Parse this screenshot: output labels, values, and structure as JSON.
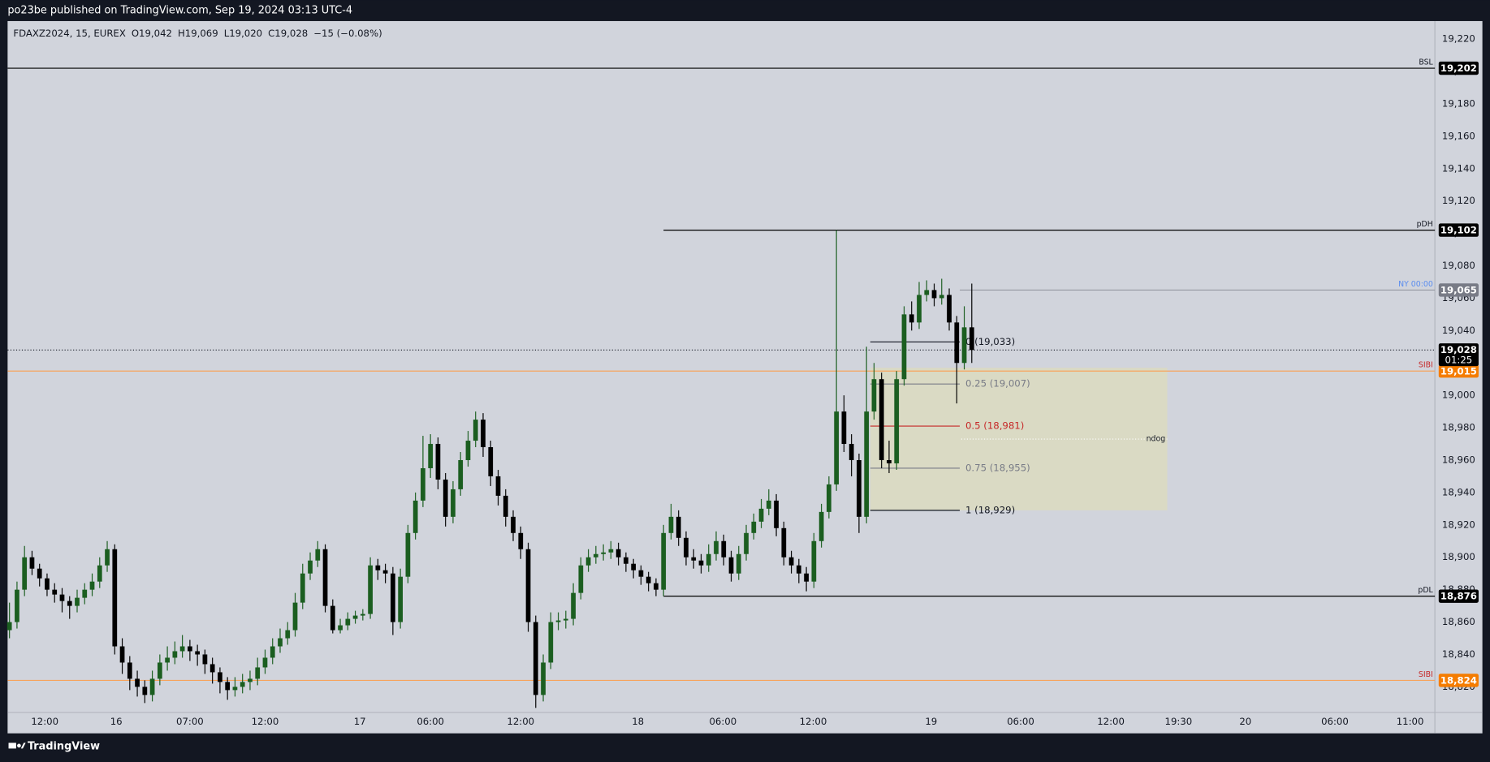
{
  "header": {
    "published": "po23be published on TradingView.com, Sep 19, 2024 03:13 UTC-4"
  },
  "footer": {
    "brand": "TradingView"
  },
  "chart_data": {
    "type": "candlestick",
    "legend": {
      "symbol": "FDAXZ2024, 15, EUREX",
      "open": "O19,042",
      "high": "H19,069",
      "low": "L19,020",
      "close": "C19,028",
      "change": "−15 (−0.08%)"
    },
    "up_color": "#1b5e20",
    "down_color": "#000000",
    "xlim": [
      -0.25,
      189.6
    ],
    "ylim": [
      18804.2,
      19231.1
    ],
    "xticks": [
      {
        "value": 4.7,
        "label": "12:00"
      },
      {
        "value": 14.2,
        "label": "16"
      },
      {
        "value": 24,
        "label": "07:00"
      },
      {
        "value": 34,
        "label": "12:00"
      },
      {
        "value": 46.6,
        "label": "17"
      },
      {
        "value": 56,
        "label": "06:00"
      },
      {
        "value": 68,
        "label": "12:00"
      },
      {
        "value": 83.6,
        "label": "18"
      },
      {
        "value": 94.9,
        "label": "06:00"
      },
      {
        "value": 106.9,
        "label": "12:00"
      },
      {
        "value": 122.6,
        "label": "19"
      },
      {
        "value": 134.5,
        "label": "06:00"
      },
      {
        "value": 146.5,
        "label": "12:00"
      },
      {
        "value": 155.5,
        "label": "19:30"
      },
      {
        "value": 164.4,
        "label": "20"
      },
      {
        "value": 176.3,
        "label": "06:00"
      },
      {
        "value": 186.3,
        "label": "11:00"
      }
    ],
    "yticks": [
      {
        "value": 18820,
        "label": "18,820"
      },
      {
        "value": 18840,
        "label": "18,840"
      },
      {
        "value": 18860,
        "label": "18,860"
      },
      {
        "value": 18880,
        "label": "18,880"
      },
      {
        "value": 18900,
        "label": "18,900"
      },
      {
        "value": 18920,
        "label": "18,920"
      },
      {
        "value": 18940,
        "label": "18,940"
      },
      {
        "value": 18960,
        "label": "18,960"
      },
      {
        "value": 18980,
        "label": "18,980"
      },
      {
        "value": 19000,
        "label": "19,000"
      },
      {
        "value": 19020,
        "label": "19,020"
      },
      {
        "value": 19040,
        "label": "19,040"
      },
      {
        "value": 19060,
        "label": "19,060"
      },
      {
        "value": 19080,
        "label": "19,080"
      },
      {
        "value": 19100,
        "label": "19,100"
      },
      {
        "value": 19120,
        "label": "19,120"
      },
      {
        "value": 19140,
        "label": "19,140"
      },
      {
        "value": 19160,
        "label": "19,160"
      },
      {
        "value": 19180,
        "label": "19,180"
      },
      {
        "value": 19200,
        "label": "19,200"
      },
      {
        "value": 19220,
        "label": "19,220"
      }
    ],
    "candles": [
      [
        18855,
        18872,
        18850,
        18860
      ],
      [
        18860,
        18885,
        18856,
        18880
      ],
      [
        18880,
        18907,
        18876,
        18900
      ],
      [
        18900,
        18904,
        18889,
        18893
      ],
      [
        18893,
        18896,
        18882,
        18887
      ],
      [
        18887,
        18890,
        18876,
        18880
      ],
      [
        18880,
        18884,
        18872,
        18877
      ],
      [
        18877,
        18881,
        18866,
        18873
      ],
      [
        18873,
        18876,
        18862,
        18870
      ],
      [
        18870,
        18880,
        18866,
        18875
      ],
      [
        18875,
        18884,
        18871,
        18880
      ],
      [
        18880,
        18890,
        18876,
        18885
      ],
      [
        18885,
        18900,
        18881,
        18895
      ],
      [
        18895,
        18910,
        18891,
        18905
      ],
      [
        18905,
        18908,
        18840,
        18845
      ],
      [
        18845,
        18850,
        18828,
        18835
      ],
      [
        18835,
        18839,
        18818,
        18825
      ],
      [
        18825,
        18830,
        18814,
        18820
      ],
      [
        18820,
        18824,
        18810,
        18815
      ],
      [
        18815,
        18830,
        18811,
        18825
      ],
      [
        18825,
        18840,
        18821,
        18835
      ],
      [
        18835,
        18845,
        18830,
        18838
      ],
      [
        18838,
        18848,
        18834,
        18842
      ],
      [
        18842,
        18852,
        18838,
        18845
      ],
      [
        18845,
        18849,
        18836,
        18842
      ],
      [
        18842,
        18846,
        18833,
        18840
      ],
      [
        18840,
        18843,
        18828,
        18834
      ],
      [
        18834,
        18838,
        18822,
        18829
      ],
      [
        18829,
        18832,
        18816,
        18823
      ],
      [
        18823,
        18826,
        18812,
        18818
      ],
      [
        18818,
        18826,
        18814,
        18820
      ],
      [
        18820,
        18828,
        18816,
        18823
      ],
      [
        18823,
        18830,
        18818,
        18825
      ],
      [
        18825,
        18838,
        18821,
        18832
      ],
      [
        18832,
        18843,
        18828,
        18838
      ],
      [
        18838,
        18850,
        18834,
        18845
      ],
      [
        18845,
        18856,
        18841,
        18850
      ],
      [
        18850,
        18860,
        18846,
        18855
      ],
      [
        18855,
        18878,
        18851,
        18872
      ],
      [
        18872,
        18896,
        18868,
        18890
      ],
      [
        18890,
        18903,
        18886,
        18898
      ],
      [
        18898,
        18910,
        18894,
        18905
      ],
      [
        18905,
        18908,
        18866,
        18870
      ],
      [
        18870,
        18874,
        18853,
        18855
      ],
      [
        18855,
        18862,
        18853,
        18858
      ],
      [
        18858,
        18866,
        18855,
        18862
      ],
      [
        18862,
        18867,
        18859,
        18864
      ],
      [
        18864,
        18868,
        18861,
        18865
      ],
      [
        18865,
        18900,
        18862,
        18895
      ],
      [
        18895,
        18899,
        18886,
        18892
      ],
      [
        18892,
        18896,
        18884,
        18890
      ],
      [
        18890,
        18894,
        18852,
        18860
      ],
      [
        18860,
        18893,
        18856,
        18888
      ],
      [
        18888,
        18920,
        18884,
        18915
      ],
      [
        18915,
        18940,
        18911,
        18935
      ],
      [
        18935,
        18975,
        18931,
        18955
      ],
      [
        18955,
        18976,
        18949,
        18970
      ],
      [
        18970,
        18974,
        18942,
        18948
      ],
      [
        18948,
        18952,
        18919,
        18925
      ],
      [
        18925,
        18947,
        18921,
        18942
      ],
      [
        18942,
        18965,
        18938,
        18960
      ],
      [
        18960,
        18978,
        18956,
        18972
      ],
      [
        18972,
        18990,
        18968,
        18985
      ],
      [
        18985,
        18989,
        18962,
        18968
      ],
      [
        18968,
        18972,
        18944,
        18950
      ],
      [
        18950,
        18954,
        18932,
        18938
      ],
      [
        18938,
        18942,
        18919,
        18925
      ],
      [
        18925,
        18929,
        18910,
        18915
      ],
      [
        18915,
        18919,
        18899,
        18905
      ],
      [
        18905,
        18909,
        18854,
        18860
      ],
      [
        18860,
        18864,
        18807,
        18815
      ],
      [
        18815,
        18840,
        18811,
        18835
      ],
      [
        18835,
        18866,
        18831,
        18860
      ],
      [
        18860,
        18866,
        18855,
        18861
      ],
      [
        18861,
        18867,
        18856,
        18862
      ],
      [
        18862,
        18884,
        18858,
        18878
      ],
      [
        18878,
        18900,
        18874,
        18895
      ],
      [
        18895,
        18905,
        18891,
        18900
      ],
      [
        18900,
        18907,
        18896,
        18902
      ],
      [
        18902,
        18908,
        18898,
        18903
      ],
      [
        18903,
        18910,
        18899,
        18905
      ],
      [
        18905,
        18909,
        18895,
        18900
      ],
      [
        18900,
        18903,
        18891,
        18896
      ],
      [
        18896,
        18899,
        18887,
        18892
      ],
      [
        18892,
        18895,
        18883,
        18888
      ],
      [
        18888,
        18891,
        18879,
        18884
      ],
      [
        18884,
        18887,
        18876,
        18880
      ],
      [
        18880,
        18920,
        18876,
        18915
      ],
      [
        18915,
        18933,
        18911,
        18925
      ],
      [
        18925,
        18929,
        18907,
        18912
      ],
      [
        18912,
        18916,
        18895,
        18900
      ],
      [
        18900,
        18905,
        18893,
        18898
      ],
      [
        18898,
        18902,
        18890,
        18895
      ],
      [
        18895,
        18908,
        18891,
        18902
      ],
      [
        18902,
        18916,
        18898,
        18910
      ],
      [
        18910,
        18914,
        18895,
        18900
      ],
      [
        18900,
        18904,
        18885,
        18890
      ],
      [
        18890,
        18907,
        18886,
        18902
      ],
      [
        18902,
        18920,
        18898,
        18915
      ],
      [
        18915,
        18927,
        18911,
        18922
      ],
      [
        18922,
        18936,
        18918,
        18930
      ],
      [
        18930,
        18942,
        18926,
        18935
      ],
      [
        18935,
        18939,
        18913,
        18918
      ],
      [
        18918,
        18922,
        18895,
        18900
      ],
      [
        18900,
        18904,
        18890,
        18895
      ],
      [
        18895,
        18899,
        18884,
        18890
      ],
      [
        18890,
        18894,
        18879,
        18885
      ],
      [
        18885,
        18915,
        18881,
        18910
      ],
      [
        18910,
        18933,
        18906,
        18928
      ],
      [
        18928,
        18950,
        18924,
        18945
      ],
      [
        18945,
        19102,
        18941,
        18990
      ],
      [
        18990,
        19000,
        18965,
        18970
      ],
      [
        18970,
        18976,
        18950,
        18960
      ],
      [
        18960,
        18964,
        18915,
        18925
      ],
      [
        18925,
        19030,
        18921,
        18990
      ],
      [
        18990,
        19020,
        18985,
        19010
      ],
      [
        19010,
        19014,
        18955,
        18960
      ],
      [
        18960,
        18972,
        18952,
        18958
      ],
      [
        18958,
        19015,
        18954,
        19010
      ],
      [
        19010,
        19055,
        19006,
        19050
      ],
      [
        19050,
        19058,
        19040,
        19045
      ],
      [
        19045,
        19070,
        19041,
        19062
      ],
      [
        19062,
        19071,
        19058,
        19065
      ],
      [
        19065,
        19069,
        19055,
        19060
      ],
      [
        19060,
        19072,
        19056,
        19062
      ],
      [
        19062,
        19066,
        19040,
        19045
      ],
      [
        19045,
        19049,
        18995,
        19020
      ],
      [
        19020,
        19055,
        19016,
        19042
      ],
      [
        19042,
        19069,
        19020,
        19028
      ]
    ],
    "zone": {
      "top": 19017,
      "bottom": 18929,
      "x_start": 114.5,
      "x_end": 154,
      "color": "#dcdbc0"
    },
    "fib": {
      "x_start": 114.5,
      "x_end": 126.4,
      "levels": [
        {
          "label": "0 (19,033)",
          "value": 19033,
          "color": "#131722"
        },
        {
          "label": "0.25 (19,007)",
          "value": 19007,
          "color": "#787b86"
        },
        {
          "label": "0.5 (18,981)",
          "value": 18981,
          "color": "#c62828"
        },
        {
          "label": "0.75 (18,955)",
          "value": 18955,
          "color": "#787b86"
        },
        {
          "label": "1 (18,929)",
          "value": 18929,
          "color": "#131722"
        }
      ]
    },
    "ndog": {
      "label": "ndog",
      "value": 18973,
      "x_start": 126.6,
      "x_end": 154
    },
    "levels": [
      {
        "name": "BSL",
        "value": 19202,
        "value_label": "19,202",
        "color": "#000000",
        "box": "#000000"
      },
      {
        "name": "pDH",
        "value": 19102,
        "value_label": "19,102",
        "color": "#000000",
        "box": "#000000",
        "x_start": 87
      },
      {
        "name": "NY 00:00",
        "value": 19065,
        "value_label": "19,065",
        "color": "#9598a1",
        "box": "#787b86",
        "text_color": "#5b8def",
        "x_start": 126.4
      },
      {
        "name": "SIBI",
        "value": 19015,
        "value_label": "19,015",
        "color": "#f7a35c",
        "box": "#f57c00",
        "text_color": "#c62828"
      },
      {
        "name": "pDL",
        "value": 18876,
        "value_label": "18,876",
        "color": "#000000",
        "box": "#000000",
        "x_start": 87
      },
      {
        "name": "SIBI",
        "value": 18824,
        "value_label": "18,824",
        "color": "#f7a35c",
        "box": "#f57c00",
        "text_color": "#c62828"
      }
    ],
    "last_price": {
      "value": 19028,
      "value_label": "19,028",
      "countdown": "01:25"
    }
  }
}
